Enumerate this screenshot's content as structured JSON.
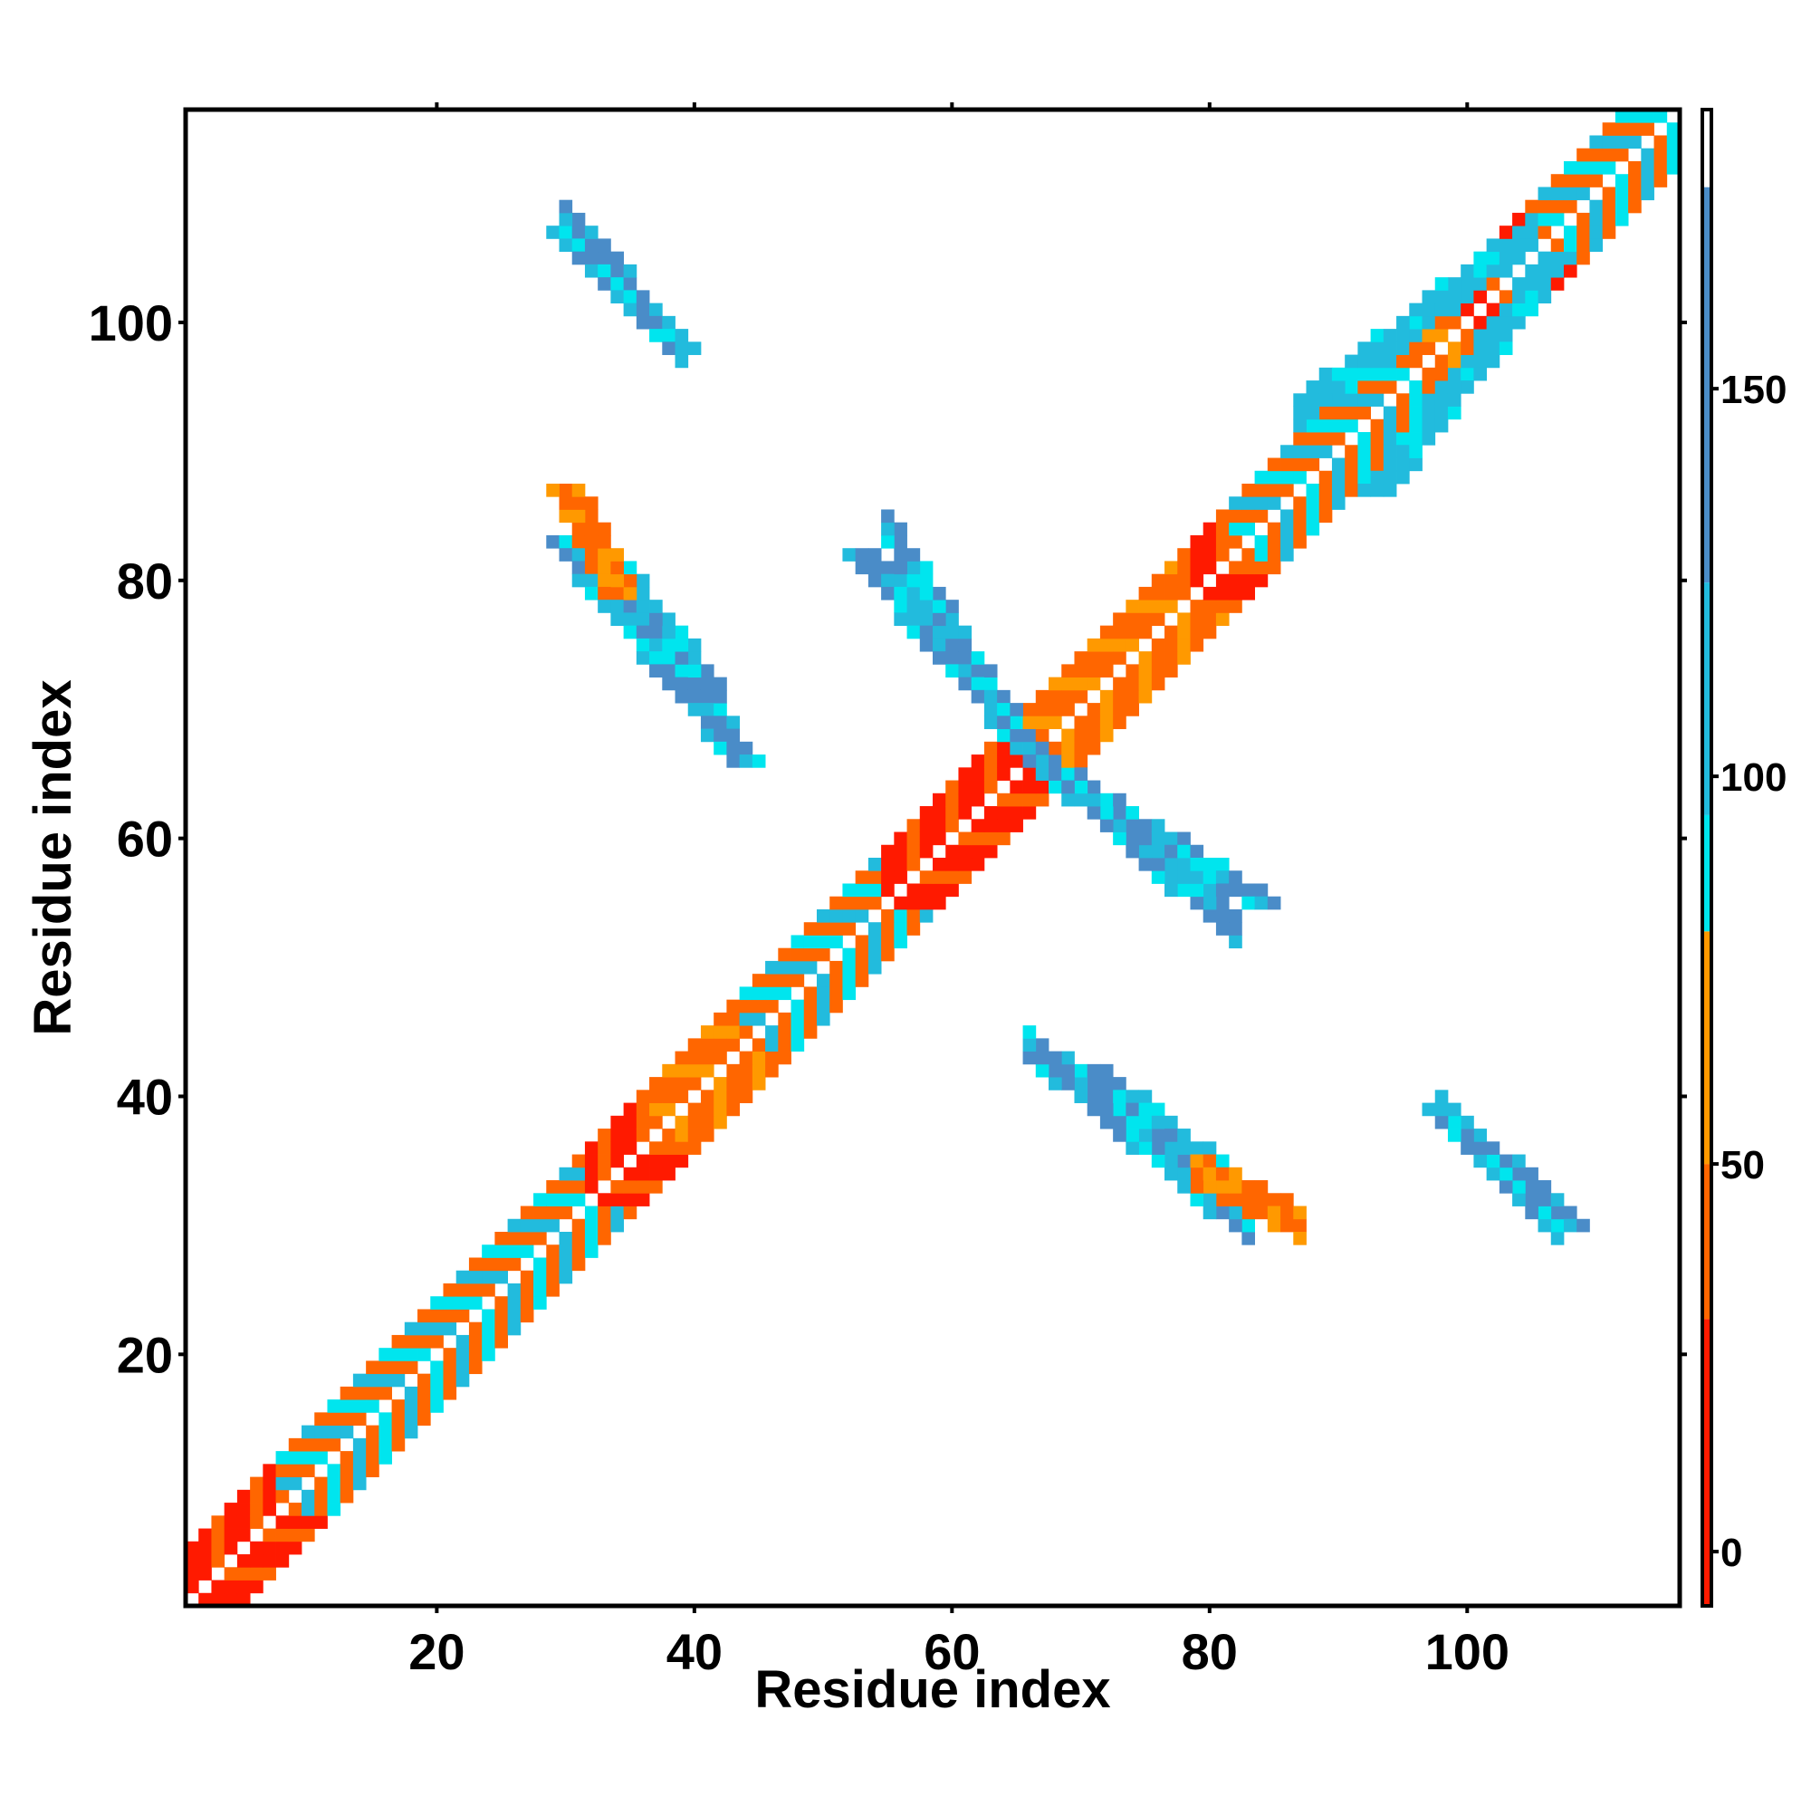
{
  "chart_data": {
    "type": "heatmap",
    "title": "",
    "xlabel": "Residue index",
    "ylabel": "Residue index",
    "xlim": [
      0.5,
      116.5
    ],
    "ylim": [
      0.5,
      116.5
    ],
    "x_ticks": [
      20,
      40,
      60,
      80,
      100
    ],
    "y_ticks": [
      20,
      40,
      60,
      80,
      100
    ],
    "grid": false,
    "legend": "colorbar-right",
    "colorbar": {
      "ticks": [
        0,
        50,
        100,
        150
      ],
      "range": [
        -7,
        186
      ],
      "bands": [
        {
          "from": -7,
          "to": 30,
          "color": "#ff1a00"
        },
        {
          "from": 30,
          "to": 50,
          "color": "#ff6600"
        },
        {
          "from": 50,
          "to": 80,
          "color": "#ff9900"
        },
        {
          "from": 80,
          "to": 95,
          "color": "#00e5ee"
        },
        {
          "from": 95,
          "to": 125,
          "color": "#22bbdd"
        },
        {
          "from": 125,
          "to": 176,
          "color": "#4a8cc8"
        },
        {
          "from": 176,
          "to": 186,
          "color": "#ffffff"
        }
      ]
    },
    "color_scale": {
      "red": "#ff1a00",
      "orange_red": "#ff6600",
      "orange": "#ff9900",
      "cyan": "#00e5ee",
      "light_blue": "#22bbdd",
      "steel_blue": "#4a8cc8"
    },
    "diagonal_band": [
      {
        "from": 1,
        "to": 8,
        "pattern": "red"
      },
      {
        "from": 8,
        "to": 26,
        "pattern": "orange-cyan"
      },
      {
        "from": 26,
        "to": 32,
        "pattern": "orange-cyan"
      },
      {
        "from": 32,
        "to": 37,
        "pattern": "red"
      },
      {
        "from": 37,
        "to": 44,
        "pattern": "orange"
      },
      {
        "from": 44,
        "to": 55,
        "pattern": "orange-cyan"
      },
      {
        "from": 55,
        "to": 66,
        "pattern": "red"
      },
      {
        "from": 66,
        "to": 78,
        "pattern": "orange"
      },
      {
        "from": 78,
        "to": 82,
        "pattern": "red"
      },
      {
        "from": 82,
        "to": 96,
        "pattern": "orange-cyan"
      },
      {
        "from": 96,
        "to": 100,
        "pattern": "orange"
      },
      {
        "from": 100,
        "to": 106,
        "pattern": "red"
      },
      {
        "from": 106,
        "to": 116,
        "pattern": "orange-cyan"
      }
    ],
    "regions": [
      {
        "name": "anti-diagonal upper-left",
        "x": [
          30,
          44
        ],
        "y": [
          66,
          83
        ],
        "color": "steel_blue"
      },
      {
        "name": "anti-diagonal near center",
        "x": [
          53,
          67
        ],
        "y": [
          66,
          82
        ],
        "color": "steel_blue"
      },
      {
        "name": "anti-diagonal lower-right",
        "x": [
          67,
          84
        ],
        "y": [
          55,
          66
        ],
        "color": "steel_blue"
      },
      {
        "name": "top-left arc",
        "x": [
          30,
          39
        ],
        "y": [
          98,
          107
        ],
        "color": "steel_blue"
      },
      {
        "name": "upper-right cross",
        "x": [
          93,
          107
        ],
        "y": [
          87,
          105
        ],
        "color": "light_blue"
      },
      {
        "name": "lower-right arc",
        "x": [
          71,
          86
        ],
        "y": [
          30,
          42
        ],
        "color": "steel_blue"
      },
      {
        "name": "far lower-right arc",
        "x": [
          98,
          108
        ],
        "y": [
          30,
          39
        ],
        "color": "steel_blue"
      },
      {
        "name": "left arc",
        "x": [
          30,
          34
        ],
        "y": [
          79,
          87
        ],
        "color": "orange"
      }
    ]
  }
}
